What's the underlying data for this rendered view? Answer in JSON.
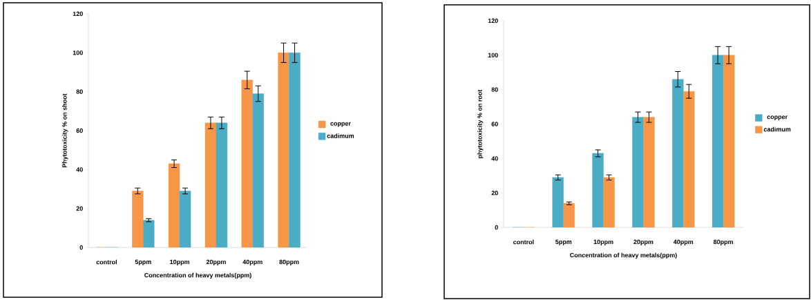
{
  "chart_data": [
    {
      "type": "bar",
      "xlabel": "Concentration of heavy metals(ppm)",
      "ylabel": "Phytotoxicity % on shoot",
      "categories": [
        "control",
        "5ppm",
        "10ppm",
        "20ppm",
        "40ppm",
        "80ppm"
      ],
      "series": [
        {
          "name": "copper",
          "color": "#f79646",
          "values": [
            0,
            29,
            43,
            64,
            86,
            100
          ],
          "errors": [
            null,
            1.5,
            2,
            3,
            4.5,
            5
          ]
        },
        {
          "name": "cadimum",
          "color": "#4bacc6",
          "values": [
            0,
            14,
            29,
            64,
            79,
            100
          ],
          "errors": [
            null,
            0.8,
            1.5,
            3,
            4,
            5
          ]
        }
      ],
      "ylim": [
        0,
        120
      ],
      "yticks": [
        0,
        20,
        40,
        60,
        80,
        100,
        120
      ],
      "legend": "right"
    },
    {
      "type": "bar",
      "xlabel": "Concentration of heavy metals(ppm)",
      "ylabel": "phytotoxicity % on root",
      "categories": [
        "control",
        "5ppm",
        "10ppm",
        "20ppm",
        "40ppm",
        "80ppm"
      ],
      "series": [
        {
          "name": "copper",
          "color": "#4bacc6",
          "values": [
            0,
            29,
            43,
            64,
            86,
            100
          ],
          "errors": [
            null,
            1.5,
            2,
            3,
            4.5,
            5
          ]
        },
        {
          "name": "cadimum",
          "color": "#f79646",
          "values": [
            0,
            14,
            29,
            64,
            79,
            100
          ],
          "errors": [
            null,
            0.8,
            1.5,
            3,
            4,
            5
          ]
        }
      ],
      "ylim": [
        0,
        120
      ],
      "yticks": [
        0,
        20,
        40,
        60,
        80,
        100,
        120
      ],
      "legend": "right"
    }
  ]
}
